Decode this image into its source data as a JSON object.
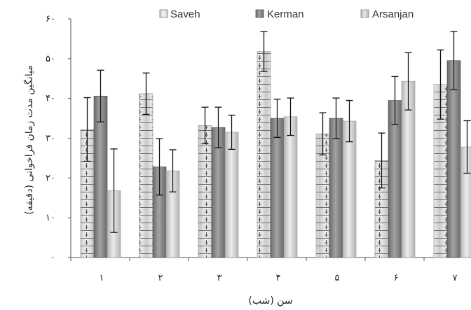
{
  "chart_data": {
    "type": "bar",
    "xlabel": "سن (شب)",
    "ylabel": "میانگین مدت زمان فراخوانی (دقیقه)",
    "categories": [
      "۱",
      "۲",
      "۳",
      "۴",
      "۵",
      "۶",
      "۷"
    ],
    "y_tick_labels": [
      "۰",
      "۱۰",
      "۲۰",
      "۳۰",
      "۴۰",
      "۵۰",
      "۶۰"
    ],
    "y_ticks": [
      0,
      10,
      20,
      30,
      40,
      50,
      60
    ],
    "ylim": [
      0,
      60
    ],
    "legend_position": "top",
    "grid": false,
    "series": [
      {
        "name": "Saveh",
        "color": "#d9d9d9",
        "values": [
          32.2,
          41.2,
          33.2,
          51.8,
          31.1,
          24.4,
          43.5
        ],
        "errors": [
          8.0,
          5.2,
          4.6,
          5.0,
          5.3,
          6.9,
          8.7
        ]
      },
      {
        "name": "Kerman",
        "color": "#7f7f7f",
        "values": [
          40.6,
          22.8,
          32.7,
          35.0,
          35.0,
          39.5,
          49.5
        ],
        "errors": [
          6.5,
          7.1,
          5.1,
          4.8,
          5.1,
          6.0,
          7.3
        ]
      },
      {
        "name": "Arsanjan",
        "color": "#c8c8c8",
        "values": [
          16.8,
          21.8,
          31.5,
          35.4,
          34.3,
          44.3,
          27.8
        ],
        "errors": [
          10.5,
          5.3,
          4.3,
          4.7,
          5.2,
          7.2,
          6.6
        ]
      }
    ]
  }
}
